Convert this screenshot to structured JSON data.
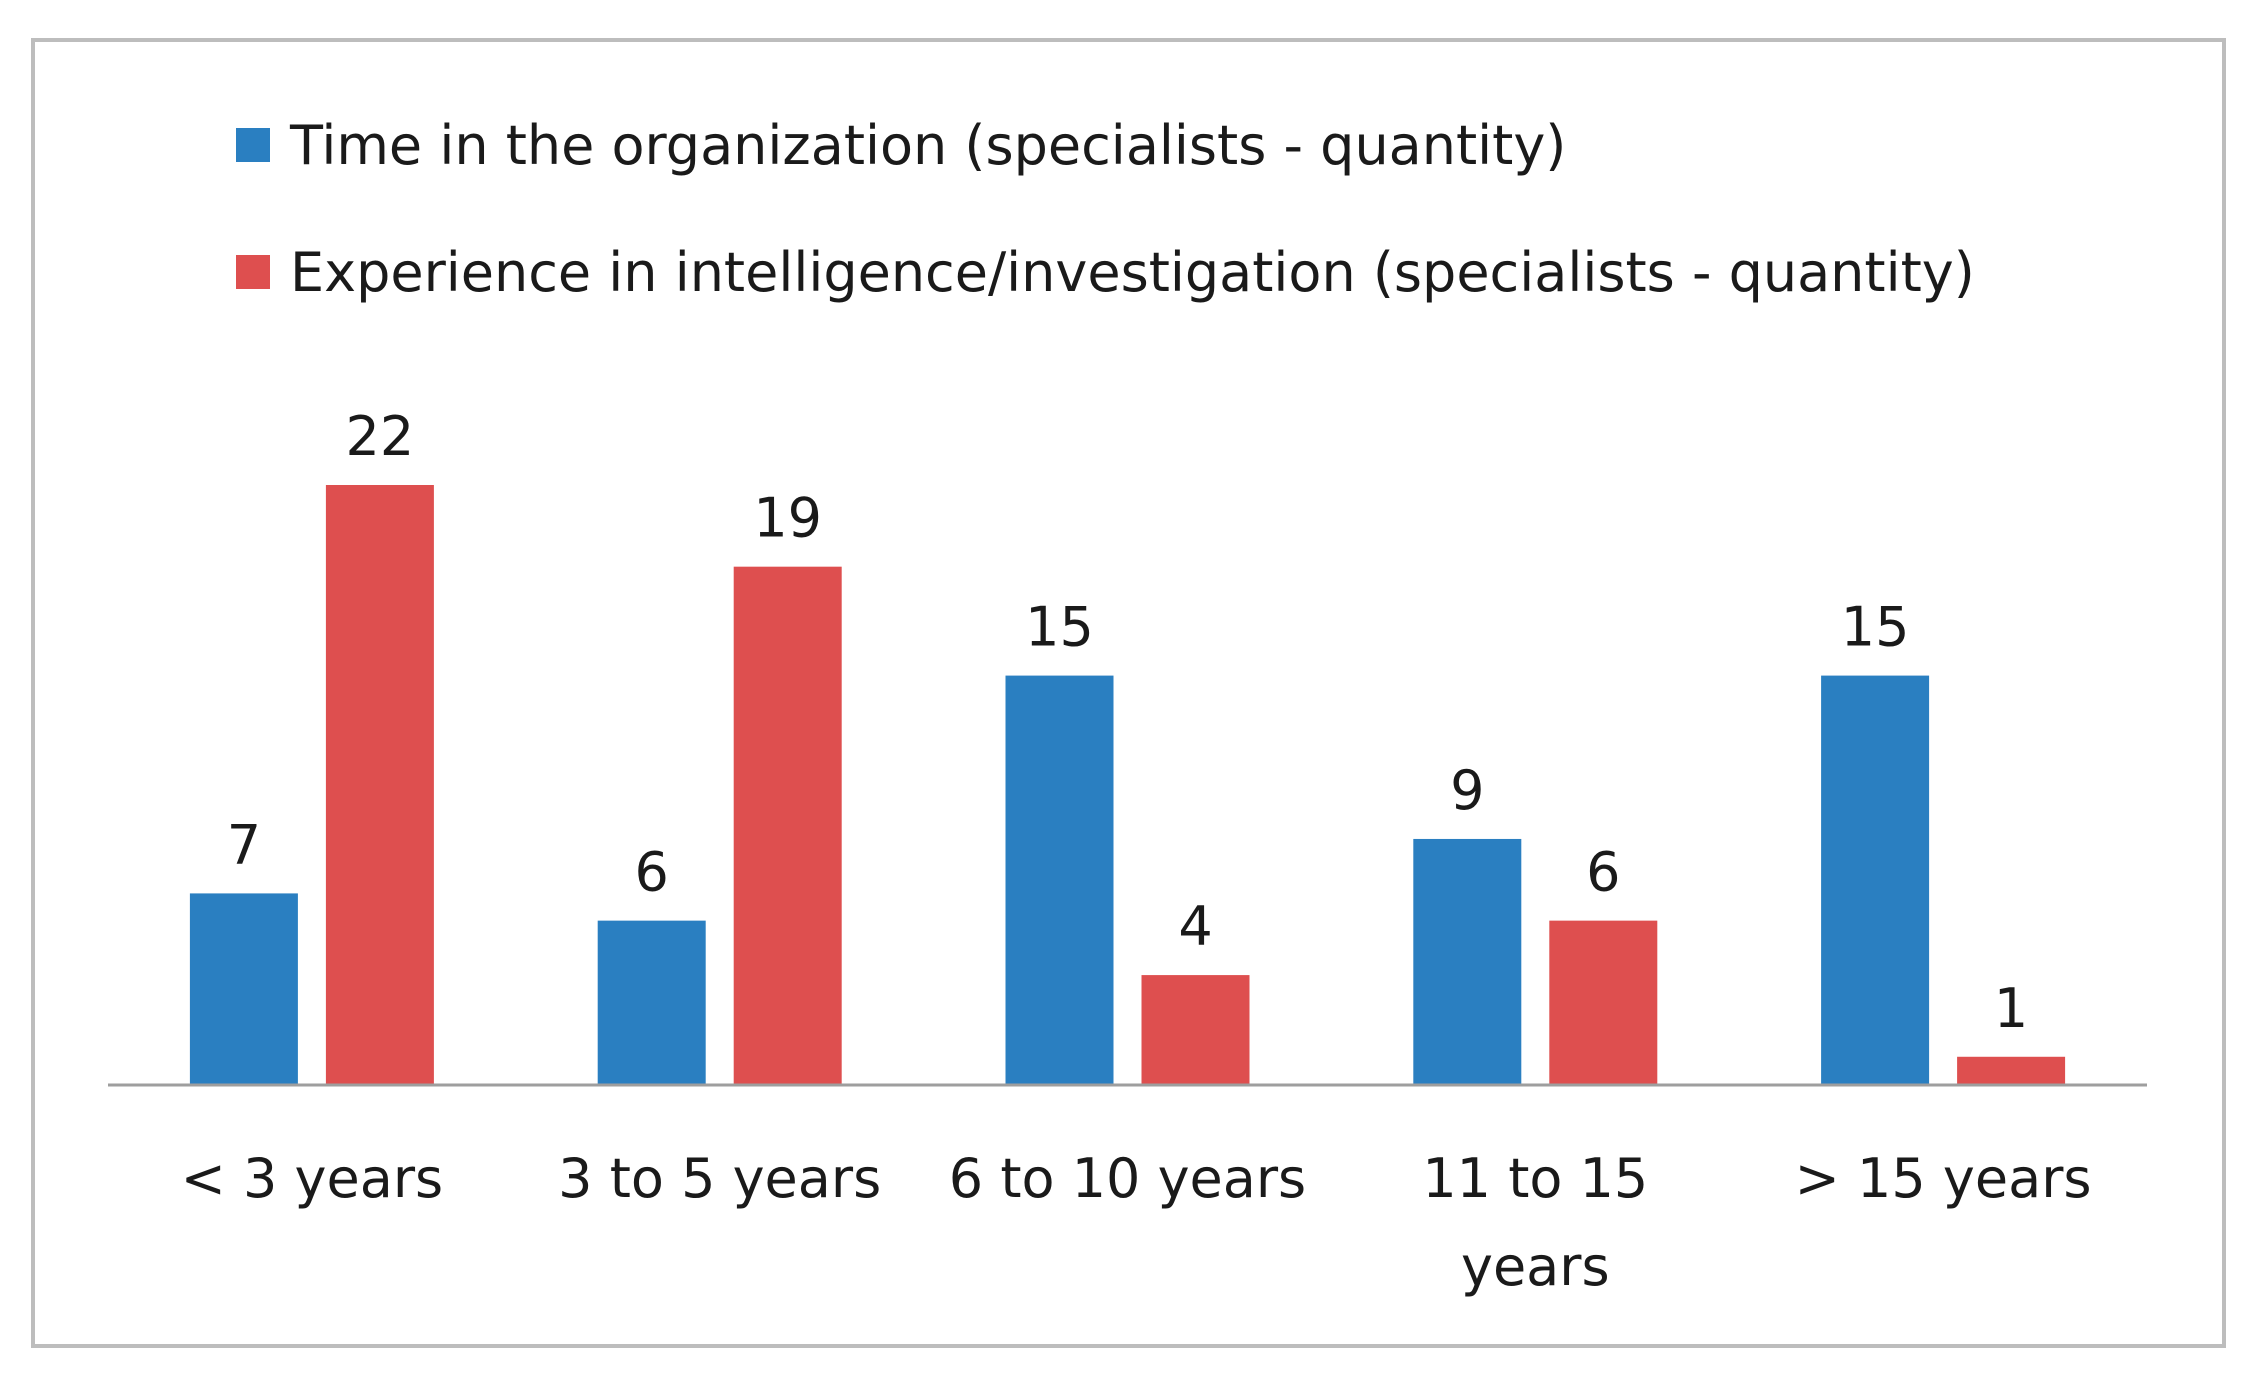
{
  "chart_data": {
    "type": "bar",
    "title": "",
    "xlabel": "",
    "ylabel": "",
    "categories": [
      [
        "< 3 years"
      ],
      [
        "3 to 5 years"
      ],
      [
        "6 to 10 years"
      ],
      [
        "11 to 15",
        "years"
      ],
      [
        "> 15 years"
      ]
    ],
    "series": [
      {
        "name": "Time in the organization (specialists - quantity)",
        "color": "#2a7fc1",
        "values": [
          7,
          6,
          15,
          9,
          15
        ]
      },
      {
        "name": "Experience in intelligence/investigation (specialists - quantity)",
        "color": "#de4f4f",
        "values": [
          22,
          19,
          4,
          6,
          1
        ]
      }
    ],
    "ylim": [
      0,
      22
    ],
    "grid": false,
    "legend_position": "top-left",
    "data_labels": true
  }
}
